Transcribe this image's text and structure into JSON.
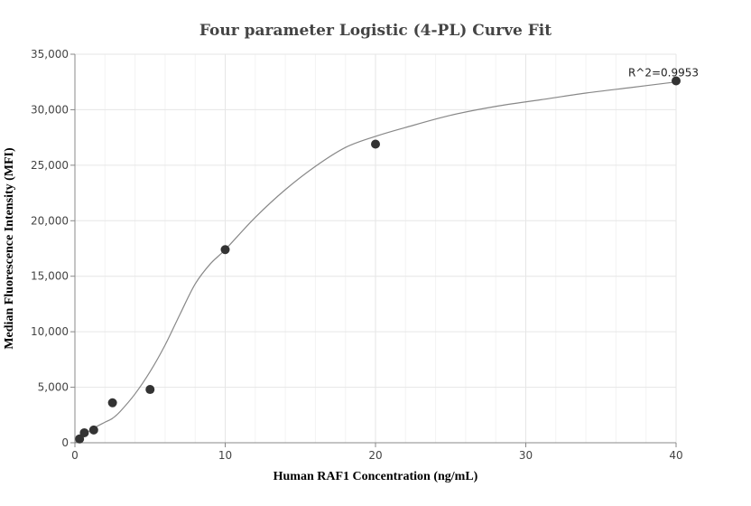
{
  "chart_data": {
    "type": "scatter",
    "title": "Four parameter Logistic (4-PL) Curve Fit",
    "xlabel": "Human RAF1 Concentration (ng/mL)",
    "ylabel": "Median Fluorescence Intensity (MFI)",
    "xlim": [
      0,
      40
    ],
    "ylim": [
      0,
      35000
    ],
    "x_ticks": [
      0,
      10,
      20,
      30,
      40
    ],
    "y_ticks": [
      0,
      5000,
      10000,
      15000,
      20000,
      25000,
      30000,
      35000
    ],
    "x_tick_labels": [
      "0",
      "10",
      "20",
      "30",
      "40"
    ],
    "y_tick_labels": [
      "0",
      "5,000",
      "10,000",
      "15,000",
      "20,000",
      "25,000",
      "30,000",
      "35,000"
    ],
    "grid": true,
    "points": [
      {
        "x": 0.3125,
        "y": 350
      },
      {
        "x": 0.625,
        "y": 900
      },
      {
        "x": 1.25,
        "y": 1150
      },
      {
        "x": 2.5,
        "y": 3600
      },
      {
        "x": 5,
        "y": 4800
      },
      {
        "x": 10,
        "y": 17400
      },
      {
        "x": 20,
        "y": 26900
      },
      {
        "x": 40,
        "y": 32600
      }
    ],
    "fit_curve": {
      "x": [
        0,
        0.5,
        1,
        1.5,
        2,
        2.5,
        3,
        4,
        5,
        6,
        7,
        8,
        9,
        10,
        12,
        14,
        16,
        18,
        20,
        22,
        25,
        28,
        31,
        34,
        37,
        40
      ],
      "y": [
        0,
        600,
        1100,
        1500,
        1850,
        2200,
        2800,
        4400,
        6400,
        8800,
        11600,
        14300,
        16100,
        17400,
        20300,
        22800,
        24900,
        26600,
        27600,
        28400,
        29500,
        30300,
        30900,
        31500,
        32000,
        32500
      ]
    },
    "annotation": "R^2=0.9953",
    "colors": {
      "points": "#333333",
      "curve": "#888888"
    }
  }
}
